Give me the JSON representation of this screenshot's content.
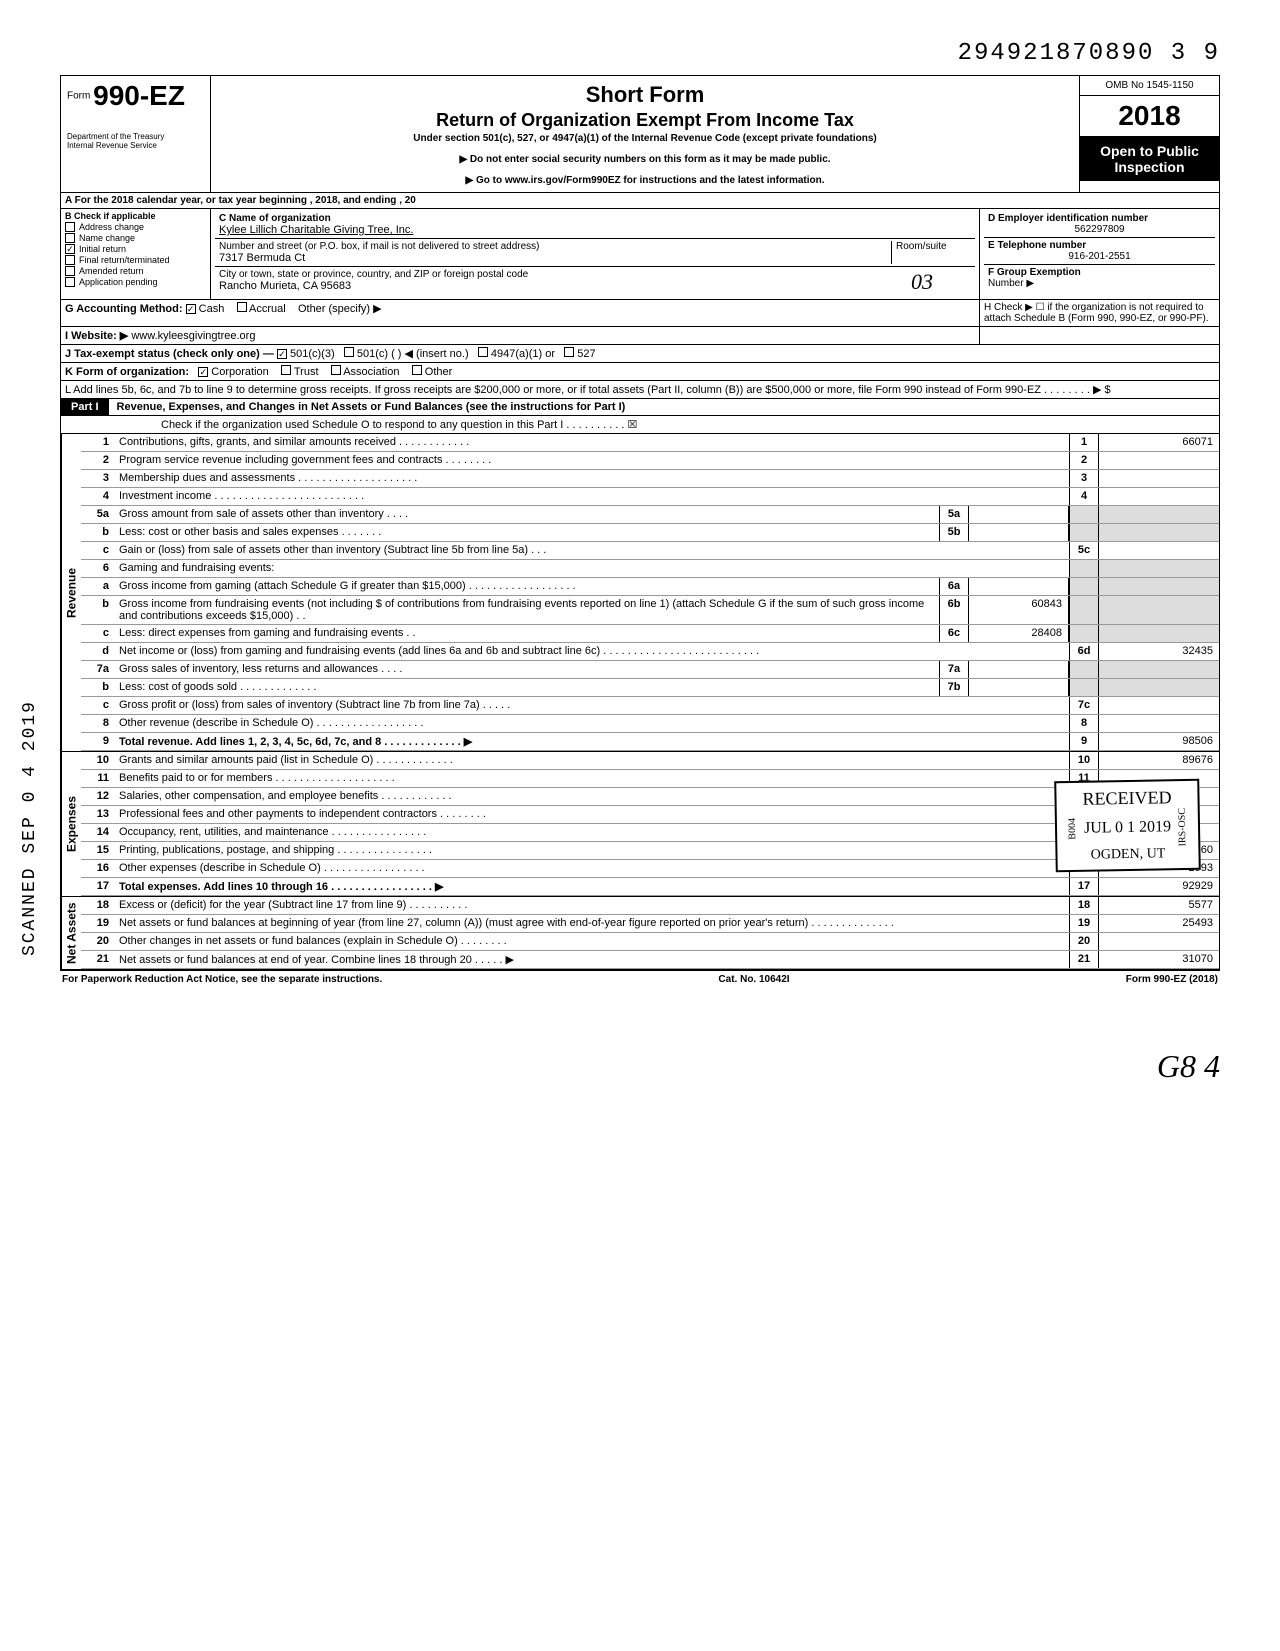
{
  "header": {
    "top_number": "294921870890 3  9",
    "form_prefix": "Form",
    "form_number": "990-EZ",
    "title1": "Short Form",
    "title2": "Return of Organization Exempt From Income Tax",
    "subtitle": "Under section 501(c), 527, or 4947(a)(1) of the Internal Revenue Code (except private foundations)",
    "bullet1": "▶ Do not enter social security numbers on this form as it may be made public.",
    "bullet2": "▶ Go to www.irs.gov/Form990EZ for instructions and the latest information.",
    "dept": "Department of the Treasury\nInternal Revenue Service",
    "omb": "OMB No 1545-1150",
    "year": "2018",
    "open_public": "Open to Public Inspection"
  },
  "line_a": "A For the 2018 calendar year, or tax year beginning                                             , 2018, and ending                                    , 20",
  "section_b": {
    "title": "B Check if applicable",
    "items": [
      {
        "label": "Address change",
        "checked": false
      },
      {
        "label": "Name change",
        "checked": false
      },
      {
        "label": "Initial return",
        "checked": true
      },
      {
        "label": "Final return/terminated",
        "checked": false
      },
      {
        "label": "Amended return",
        "checked": false
      },
      {
        "label": "Application pending",
        "checked": false
      }
    ]
  },
  "section_c": {
    "name_label": "C Name of organization",
    "name": "Kylee Lillich Charitable Giving Tree, Inc.",
    "addr_label": "Number and street (or P.O. box, if mail is not delivered to street address)",
    "room_label": "Room/suite",
    "addr": "7317 Bermuda Ct",
    "city_label": "City or town, state or province, country, and ZIP or foreign postal code",
    "city": "Rancho Murieta, CA 95683",
    "stamp": "03"
  },
  "section_d": {
    "label": "D Employer identification number",
    "value": "562297809"
  },
  "section_e": {
    "label": "E Telephone number",
    "value": "916-201-2551"
  },
  "section_f": {
    "label": "F Group Exemption",
    "sub": "Number ▶"
  },
  "line_g": {
    "label": "G Accounting Method:",
    "cash": "Cash",
    "accrual": "Accrual",
    "other": "Other (specify) ▶"
  },
  "line_h": "H Check ▶ ☐ if the organization is not required to attach Schedule B (Form 990, 990-EZ, or 990-PF).",
  "line_i": {
    "label": "I Website: ▶",
    "value": "www.kyleesgivingtree.org"
  },
  "line_j": {
    "label": "J Tax-exempt status (check only one) —",
    "opt1": "501(c)(3)",
    "opt2": "501(c) (        ) ◀ (insert no.)",
    "opt3": "4947(a)(1) or",
    "opt4": "527"
  },
  "line_k": {
    "label": "K Form of organization:",
    "corp": "Corporation",
    "trust": "Trust",
    "assoc": "Association",
    "other": "Other"
  },
  "line_l": "L Add lines 5b, 6c, and 7b to line 9 to determine gross receipts. If gross receipts are $200,000 or more, or if total assets (Part II, column (B)) are $500,000 or more, file Form 990 instead of Form 990-EZ  . . . . . . . .  ▶  $",
  "part1": {
    "title": "Revenue, Expenses, and Changes in Net Assets or Fund Balances (see the instructions for Part I)",
    "check": "Check if the organization used Schedule O to respond to any question in this Part I . . . . . . . . . . ☒",
    "revenue_label": "Revenue",
    "expenses_label": "Expenses",
    "netassets_label": "Net Assets",
    "lines": [
      {
        "n": "1",
        "desc": "Contributions, gifts, grants, and similar amounts received . . . . . . . . . . . .",
        "box": "1",
        "amt": "66071"
      },
      {
        "n": "2",
        "desc": "Program service revenue including government fees and contracts  . . . . . . . .",
        "box": "2",
        "amt": ""
      },
      {
        "n": "3",
        "desc": "Membership dues and assessments . . . . . . . . . . . . . . . . . . . .",
        "box": "3",
        "amt": ""
      },
      {
        "n": "4",
        "desc": "Investment income  . . . . . . . . . . . . . . . . . . . . . . . . .",
        "box": "4",
        "amt": ""
      },
      {
        "n": "5a",
        "desc": "Gross amount from sale of assets other than inventory  . . . .",
        "mid": "5a",
        "midamt": ""
      },
      {
        "n": "b",
        "desc": "Less: cost or other basis and sales expenses . . . . . . .",
        "mid": "5b",
        "midamt": ""
      },
      {
        "n": "c",
        "desc": "Gain or (loss) from sale of assets other than inventory (Subtract line 5b from line 5a) . . .",
        "box": "5c",
        "amt": ""
      },
      {
        "n": "6",
        "desc": "Gaming and fundraising events:",
        "box": "",
        "amt": ""
      },
      {
        "n": "a",
        "desc": "Gross income from gaming (attach Schedule G if greater than $15,000) . . . . . . . . . . . . . . . . . .",
        "mid": "6a",
        "midamt": ""
      },
      {
        "n": "b",
        "desc": "Gross income from fundraising events (not including  $            of contributions from fundraising events reported on line 1) (attach Schedule G if the sum of such gross income and contributions exceeds $15,000) . .",
        "mid": "6b",
        "midamt": "60843"
      },
      {
        "n": "c",
        "desc": "Less: direct expenses from gaming and fundraising events  . .",
        "mid": "6c",
        "midamt": "28408"
      },
      {
        "n": "d",
        "desc": "Net income or (loss) from gaming and fundraising events (add lines 6a and 6b and subtract line 6c)  . . . . . . . . . . . . . . . . . . . . . . . . . .",
        "box": "6d",
        "amt": "32435"
      },
      {
        "n": "7a",
        "desc": "Gross sales of inventory, less returns and allowances . . . .",
        "mid": "7a",
        "midamt": ""
      },
      {
        "n": "b",
        "desc": "Less: cost of goods sold  . . . . . . . . . . . . .",
        "mid": "7b",
        "midamt": ""
      },
      {
        "n": "c",
        "desc": "Gross profit or (loss) from sales of inventory (Subtract line 7b from line 7a)  . . . . .",
        "box": "7c",
        "amt": ""
      },
      {
        "n": "8",
        "desc": "Other revenue (describe in Schedule O) . . . . . . . . . . . . . . . . . .",
        "box": "8",
        "amt": ""
      },
      {
        "n": "9",
        "desc": "Total revenue. Add lines 1, 2, 3, 4, 5c, 6d, 7c, and 8  . . . . . . . . . . . . . ▶",
        "box": "9",
        "amt": "98506",
        "bold": true
      },
      {
        "n": "10",
        "desc": "Grants and similar amounts paid (list in Schedule O)  . . . . . . . . . . . . .",
        "box": "10",
        "amt": "89676"
      },
      {
        "n": "11",
        "desc": "Benefits paid to or for members  . . . . . . . . . . . . . . . . . . . .",
        "box": "11",
        "amt": ""
      },
      {
        "n": "12",
        "desc": "Salaries, other compensation, and employee benefits  . . . . . . . . . . . .",
        "box": "12",
        "amt": ""
      },
      {
        "n": "13",
        "desc": "Professional fees and other payments to independent contractors  . . . . . . . .",
        "box": "13",
        "amt": ""
      },
      {
        "n": "14",
        "desc": "Occupancy, rent, utilities, and maintenance  . . . . . . . . . . . . . . . .",
        "box": "14",
        "amt": ""
      },
      {
        "n": "15",
        "desc": "Printing, publications, postage, and shipping . . . . . . . . . . . . . . . .",
        "box": "15",
        "amt": "260"
      },
      {
        "n": "16",
        "desc": "Other expenses (describe in Schedule O)  . . . . . . . . . . . . . . . . .",
        "box": "16",
        "amt": "2993"
      },
      {
        "n": "17",
        "desc": "Total expenses. Add lines 10 through 16 . . . . . . . . . . . . . . . . . ▶",
        "box": "17",
        "amt": "92929",
        "bold": true
      },
      {
        "n": "18",
        "desc": "Excess or (deficit) for the year (Subtract line 17 from line 9)  . . . . . . . . . .",
        "box": "18",
        "amt": "5577"
      },
      {
        "n": "19",
        "desc": "Net assets or fund balances at beginning of year (from line 27, column (A)) (must agree with end-of-year figure reported on prior year's return)  . . . . . . . . . . . . . .",
        "box": "19",
        "amt": "25493"
      },
      {
        "n": "20",
        "desc": "Other changes in net assets or fund balances (explain in Schedule O) . . . . . . . .",
        "box": "20",
        "amt": ""
      },
      {
        "n": "21",
        "desc": "Net assets or fund balances at end of year. Combine lines 18 through 20  . . . . . ▶",
        "box": "21",
        "amt": "31070"
      }
    ]
  },
  "footer": {
    "left": "For Paperwork Reduction Act Notice, see the separate instructions.",
    "mid": "Cat. No. 10642I",
    "right": "Form 990-EZ (2018)"
  },
  "stamps": {
    "scanned": "SCANNED SEP 0 4 2019",
    "received": "RECEIVED",
    "received_date": "JUL 0 1 2019",
    "received_loc": "OGDEN, UT",
    "b004": "B004",
    "irs_osc": "IRS-OSC"
  },
  "handwritten": "G8  4",
  "colors": {
    "black": "#000000",
    "white": "#ffffff",
    "shade": "#dddddd"
  }
}
